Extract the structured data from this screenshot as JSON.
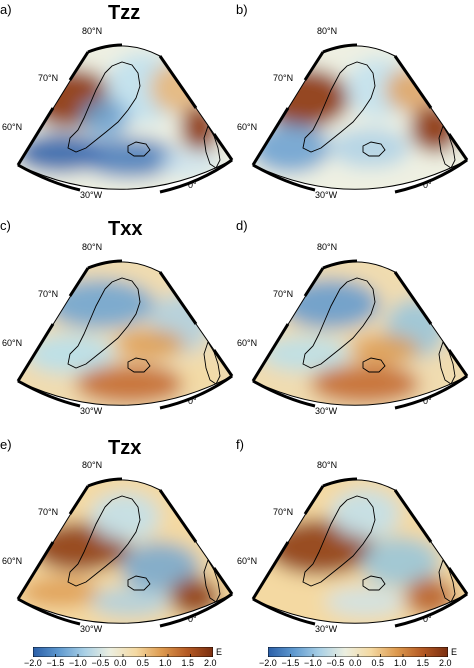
{
  "rows": [
    {
      "title": "Tzz",
      "letters": [
        "a)",
        "b)"
      ]
    },
    {
      "title": "Txx",
      "letters": [
        "c)",
        "d)"
      ]
    },
    {
      "title": "Tzx",
      "letters": [
        "e)",
        "f)"
      ]
    }
  ],
  "map_labels": {
    "lat80": "80°N",
    "lat70": "70°N",
    "lat60": "60°N",
    "lon30w": "30°W",
    "lon0": "0°"
  },
  "colorbar": {
    "ticks": [
      "−2.0",
      "−1.5",
      "−1.0",
      "−0.5",
      "0.0",
      "0.5",
      "1.0",
      "1.5",
      "2.0"
    ],
    "unit": "E",
    "range": [
      -2.0,
      2.0
    ],
    "colors": [
      "#2b5fa8",
      "#5f99cf",
      "#a9d0e6",
      "#ecefe0",
      "#f4d9a2",
      "#dd9a4f",
      "#b55a24",
      "#7a2e10"
    ]
  }
}
